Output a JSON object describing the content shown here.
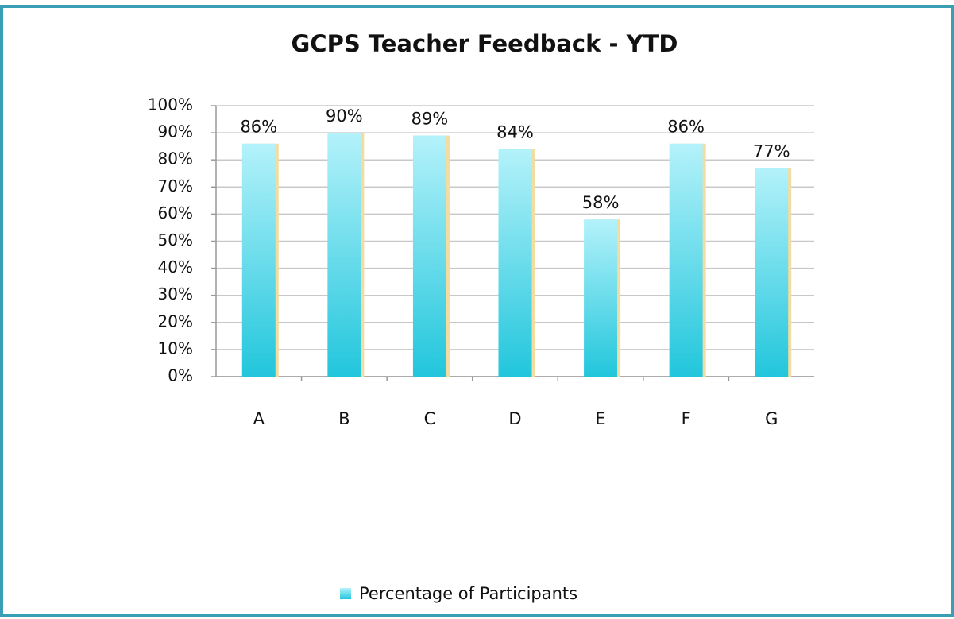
{
  "chart_data": {
    "type": "bar",
    "title": "GCPS Teacher Feedback - YTD",
    "categories": [
      "A",
      "B",
      "C",
      "D",
      "E",
      "F",
      "G"
    ],
    "series": [
      {
        "name": "Percentage of Participants",
        "color": "#22c6dc",
        "values": [
          86,
          90,
          89,
          84,
          58,
          86,
          77
        ],
        "value_labels": [
          "86%",
          "90%",
          "89%",
          "84%",
          "58%",
          "86%",
          "77%"
        ]
      }
    ],
    "ylim": [
      0,
      100
    ],
    "yticks": [
      {
        "value": 0,
        "label": "0%"
      },
      {
        "value": 10,
        "label": "10%"
      },
      {
        "value": 20,
        "label": "20%"
      },
      {
        "value": 30,
        "label": "30%"
      },
      {
        "value": 40,
        "label": "40%"
      },
      {
        "value": 50,
        "label": "50%"
      },
      {
        "value": 60,
        "label": "60%"
      },
      {
        "value": 70,
        "label": "70%"
      },
      {
        "value": 80,
        "label": "80%"
      },
      {
        "value": 90,
        "label": "90%"
      },
      {
        "value": 100,
        "label": "100%"
      }
    ],
    "grid": true,
    "legend": "bottom"
  }
}
